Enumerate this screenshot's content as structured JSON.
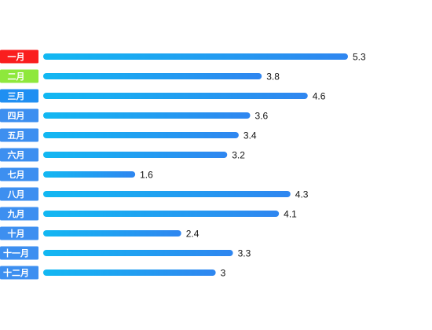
{
  "chart_data": {
    "type": "bar",
    "orientation": "horizontal",
    "categories": [
      "一月",
      "二月",
      "三月",
      "四月",
      "五月",
      "六月",
      "七月",
      "八月",
      "九月",
      "十月",
      "十一月",
      "十二月"
    ],
    "values": [
      5.3,
      3.8,
      4.6,
      3.6,
      3.4,
      3.2,
      1.6,
      4.3,
      4.1,
      2.4,
      3.3,
      3
    ],
    "value_labels": [
      "5.3",
      "3.8",
      "4.6",
      "3.6",
      "3.4",
      "3.2",
      "1.6",
      "4.3",
      "4.1",
      "2.4",
      "3.3",
      "3"
    ],
    "xlim": [
      0,
      5.3
    ],
    "grid": false,
    "legend": "none",
    "colors": {
      "bar_gradient_start": "#12b8f2",
      "bar_gradient_end": "#2f86f0",
      "label_default": "#3d8ff0",
      "label_highlight": [
        "#fa1e1e",
        "#8ee83c",
        "#1f8ff2"
      ],
      "label_text": "#ffffff",
      "value_text": "#111111"
    }
  }
}
